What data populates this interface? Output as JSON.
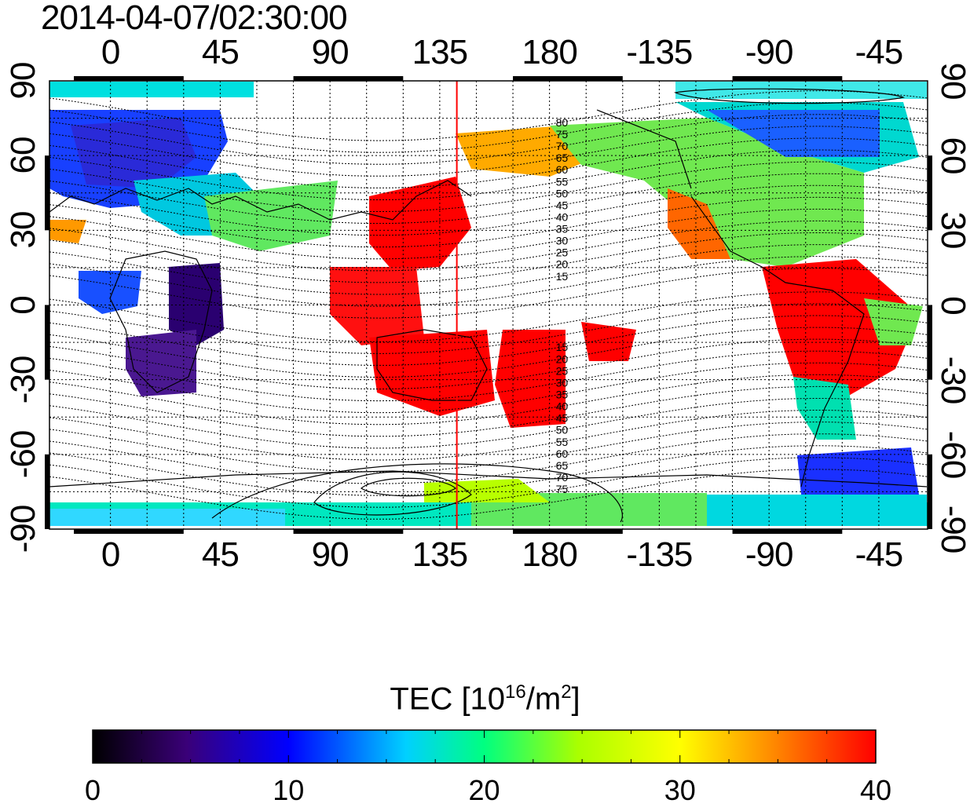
{
  "title": "2014-04-07/02:30:00",
  "x_ticks": [
    "0",
    "45",
    "90",
    "135",
    "180",
    "-135",
    "-90",
    "-45"
  ],
  "y_ticks": [
    "90",
    "60",
    "30",
    "0",
    "-30",
    "-60",
    "-90"
  ],
  "contour_labels_north": [
    "80",
    "75",
    "70",
    "65",
    "60",
    "55",
    "50",
    "45",
    "40",
    "35",
    "30",
    "25",
    "20",
    "15"
  ],
  "contour_labels_south": [
    "15",
    "20",
    "25",
    "30",
    "35",
    "40",
    "45",
    "50",
    "55",
    "60",
    "65",
    "70",
    "75"
  ],
  "colorbar": {
    "title_prefix": "TEC  [10",
    "title_sup1": "16",
    "title_mid": "/m",
    "title_sup2": "2",
    "title_suffix": "]",
    "ticks": [
      "0",
      "10",
      "20",
      "30",
      "40"
    ],
    "range": [
      0,
      40
    ],
    "colors": [
      "#000000",
      "#3a0078",
      "#0000ff",
      "#00c8ff",
      "#00ff80",
      "#aaff00",
      "#ffff00",
      "#ff9900",
      "#ff0000"
    ]
  },
  "map": {
    "lon_start": -25,
    "lon_end": 335,
    "lat_range": [
      -90,
      90
    ],
    "terminator_lon": 142,
    "terminator_color": "#ff0000"
  }
}
